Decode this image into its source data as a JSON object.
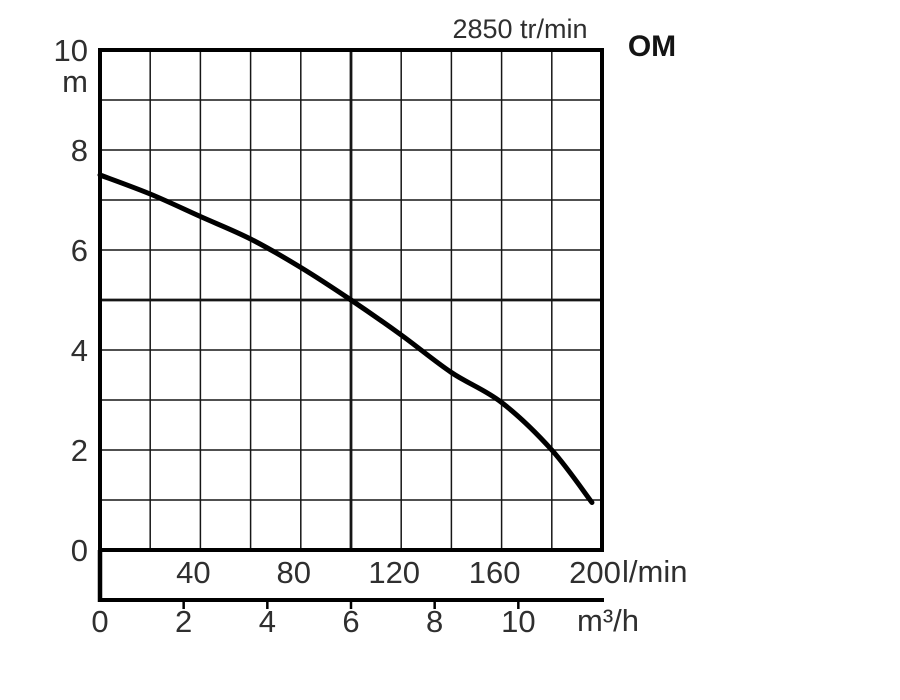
{
  "page": {
    "background": "#ffffff"
  },
  "chart_data": {
    "type": "line",
    "title": "2850 tr/min",
    "model_label": "OM",
    "legend_position": "none",
    "grid": "on",
    "y_axis": {
      "unit": "m",
      "min": 0,
      "max": 10,
      "labeled_ticks": [
        10,
        8,
        6,
        4,
        2,
        0
      ],
      "grid_step": 1,
      "emphasized_value": 5
    },
    "x_axis_primary": {
      "unit": "l/min",
      "min": 0,
      "max": 200,
      "labeled_ticks": [
        40,
        80,
        120,
        160,
        200
      ],
      "grid_step": 20,
      "emphasized_value": 100
    },
    "x_axis_secondary": {
      "unit": "m³/h",
      "labeled_ticks": [
        0,
        2,
        4,
        6,
        8,
        10
      ],
      "l_per_min_per_unit": 16.6667
    },
    "series": [
      {
        "name": "OM pump head curve",
        "color": "#000000",
        "points_q_lmin_h_m": [
          [
            0,
            7.5
          ],
          [
            20,
            7.12
          ],
          [
            40,
            6.67
          ],
          [
            60,
            6.22
          ],
          [
            80,
            5.65
          ],
          [
            100,
            5.0
          ],
          [
            120,
            4.3
          ],
          [
            140,
            3.55
          ],
          [
            160,
            2.95
          ],
          [
            180,
            2.0
          ],
          [
            196,
            0.95
          ]
        ]
      }
    ],
    "colors": {
      "grid": "#161616",
      "border": "#000000",
      "text": "#2f2f2f",
      "curve": "#000000"
    }
  }
}
